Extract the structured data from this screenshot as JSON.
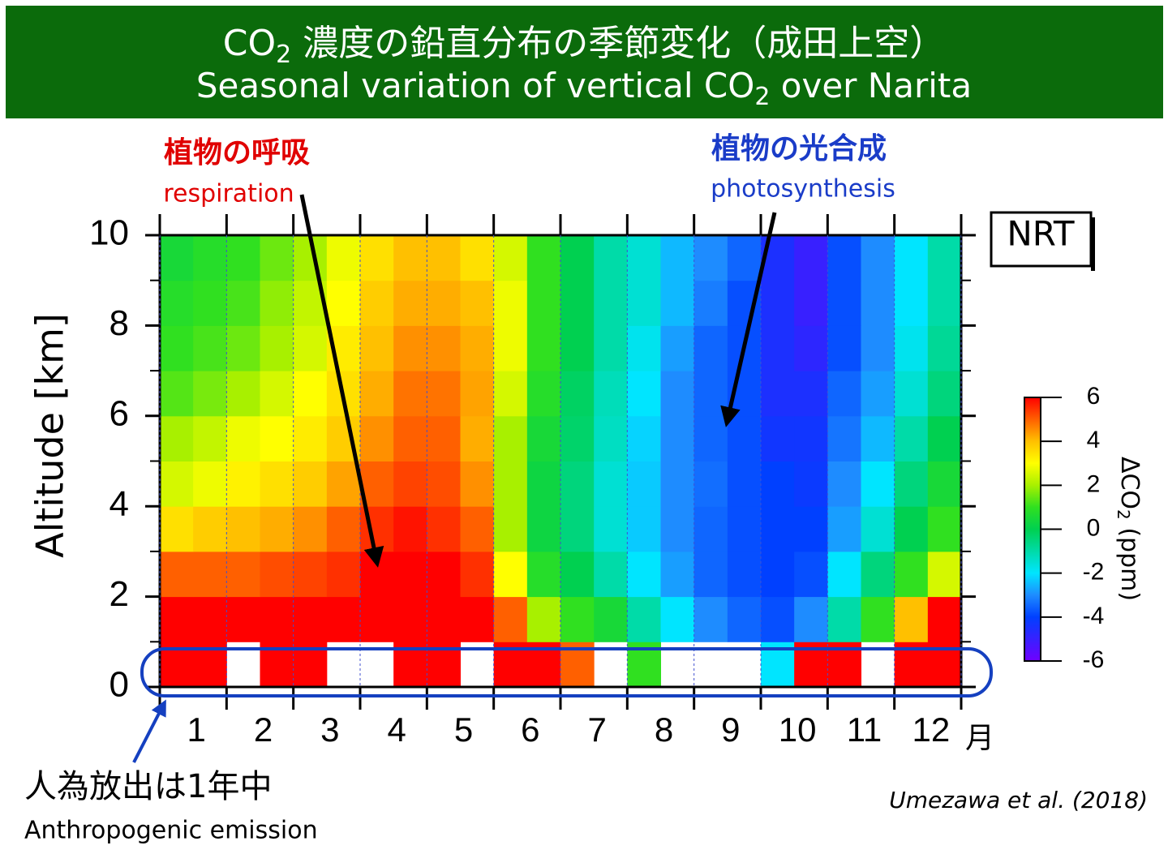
{
  "chart_data": {
    "type": "heatmap",
    "title_jp_parts": [
      "CO",
      "2",
      " 濃度の鉛直分布の季節変化（成田上空）"
    ],
    "title_en_parts": [
      "Seasonal variation of vertical CO",
      "2",
      " over Narita"
    ],
    "y_label": "Altitude [km]",
    "x_unit": "月",
    "categories": [
      "1",
      "2",
      "3",
      "4",
      "5",
      "6",
      "7",
      "8",
      "9",
      "10",
      "11",
      "12"
    ],
    "xlim": [
      0,
      12
    ],
    "xticks": [
      0,
      1,
      2,
      3,
      4,
      5,
      6,
      7,
      8,
      9,
      10,
      11,
      12
    ],
    "x_bins": [
      0,
      0.5,
      1,
      1.5,
      2,
      2.5,
      3,
      3.5,
      4,
      4.5,
      5,
      5.5,
      6,
      6.5,
      7,
      7.5,
      8,
      8.5,
      9,
      9.5,
      10,
      10.5,
      11,
      11.5,
      12
    ],
    "ylim": [
      0,
      10
    ],
    "yticks": [
      0,
      2,
      4,
      6,
      8,
      10
    ],
    "yminorticks": [
      1,
      3,
      5,
      7,
      9
    ],
    "y_bins": [
      0,
      1,
      2,
      3,
      4,
      5,
      6,
      7,
      8,
      9,
      10
    ],
    "values": [
      [
        6,
        6,
        null,
        6,
        6,
        null,
        null,
        6,
        6,
        null,
        6,
        6,
        5,
        null,
        1,
        null,
        null,
        null,
        -2,
        6,
        6,
        null,
        6,
        6
      ],
      [
        6,
        6,
        6,
        6,
        6,
        6,
        6,
        6,
        6,
        6,
        5,
        2,
        1,
        0.5,
        -1,
        -2,
        -3,
        -3.5,
        -3.8,
        -3,
        -1,
        1,
        4,
        6
      ],
      [
        5,
        5,
        5,
        5.2,
        5.3,
        5.5,
        6,
        6,
        6,
        5.5,
        3,
        0.8,
        0,
        -1,
        -2,
        -2.8,
        -3.5,
        -3.8,
        -4,
        -3.8,
        -2,
        -0.5,
        1,
        2.5
      ],
      [
        3.5,
        3.8,
        4,
        4.2,
        4.5,
        5,
        5.5,
        5.8,
        5.5,
        5,
        2,
        0.3,
        -0.5,
        -1.5,
        -2.3,
        -3,
        -3.5,
        -3.8,
        -4,
        -4,
        -2.8,
        -1.5,
        0,
        1
      ],
      [
        2.5,
        2.8,
        3.2,
        3.5,
        3.8,
        4.3,
        5,
        5.3,
        5.2,
        4.5,
        2,
        0.3,
        -0.5,
        -1.5,
        -2.3,
        -3,
        -3.4,
        -3.8,
        -4,
        -4.2,
        -3,
        -2,
        -0.5,
        0.5
      ],
      [
        2,
        2.3,
        2.8,
        3,
        3.3,
        3.8,
        4.5,
        5,
        5,
        4.2,
        2,
        0.5,
        -0.3,
        -1.3,
        -2.2,
        -3,
        -3.5,
        -3.8,
        -4.3,
        -4.3,
        -3.3,
        -2.5,
        -1,
        0
      ],
      [
        1.3,
        1.6,
        2,
        2.5,
        3,
        3.5,
        4.2,
        4.8,
        4.8,
        4.3,
        2.5,
        0.8,
        -0.2,
        -1.2,
        -2,
        -3,
        -3.5,
        -3.8,
        -4.5,
        -4.5,
        -3.5,
        -2.8,
        -1.5,
        -0.5
      ],
      [
        1,
        1.2,
        1.5,
        2,
        2.5,
        3.3,
        4,
        4.5,
        4.5,
        4.2,
        2.8,
        1,
        0,
        -1,
        -1.8,
        -2.8,
        -3.5,
        -3.8,
        -4.5,
        -4.8,
        -3.8,
        -3,
        -1.8,
        -0.8
      ],
      [
        0.8,
        1,
        1.2,
        1.8,
        2.3,
        3,
        3.8,
        4.2,
        4.2,
        4,
        2.8,
        1,
        0,
        -1,
        -1.5,
        -2.5,
        -3.2,
        -3.8,
        -4.5,
        -5,
        -3.8,
        -3,
        -2,
        -1
      ],
      [
        0.5,
        0.8,
        1,
        1.5,
        2,
        2.8,
        3.5,
        4,
        4,
        3.5,
        2.5,
        1,
        0,
        -1,
        -1.5,
        -2.5,
        -3,
        -3.5,
        -4.5,
        -5,
        -3.8,
        -3,
        -2,
        -1
      ]
    ],
    "zlim": [
      -6,
      6
    ],
    "zticks": [
      6,
      4,
      2,
      0,
      -2,
      -4,
      -6
    ],
    "colorbar_label_parts": [
      "ΔCO",
      "2",
      " (ppm)"
    ],
    "colorscale": [
      [
        -6,
        "#7000ff"
      ],
      [
        -4,
        "#0040ff"
      ],
      [
        -3,
        "#1e8cff"
      ],
      [
        -2,
        "#00e5ff"
      ],
      [
        0,
        "#00d050"
      ],
      [
        1,
        "#30e020"
      ],
      [
        2,
        "#a8f000"
      ],
      [
        3,
        "#ffff00"
      ],
      [
        4,
        "#ffc000"
      ],
      [
        5,
        "#ff6000"
      ],
      [
        6,
        "#ff0000"
      ]
    ],
    "annotations": {
      "respiration_jp": "植物の呼吸",
      "respiration_en": "respiration",
      "photosynthesis_jp": "植物の光合成",
      "photosynthesis_en": "photosynthesis",
      "badge": "NRT",
      "anthropogenic_jp": "人為放出は1年中",
      "anthropogenic_en": "Anthropogenic emission",
      "source": "Umezawa et al. (2018)"
    }
  }
}
